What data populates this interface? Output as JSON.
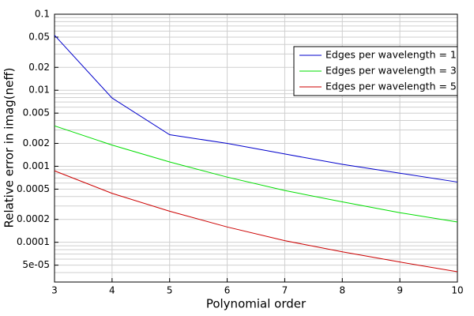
{
  "chart_data": {
    "type": "line",
    "xlabel": "Polynomial order",
    "ylabel": "Relative error in imag(neff)",
    "x": [
      3,
      4,
      5,
      6,
      7,
      8,
      9,
      10
    ],
    "series": [
      {
        "name": "Edges per wavelength = 1",
        "color": "#0000cc",
        "values": [
          0.053,
          0.0079,
          0.0026,
          0.002,
          0.00145,
          0.00106,
          0.00081,
          0.00062
        ]
      },
      {
        "name": "Edges per wavelength = 3",
        "color": "#00dd00",
        "values": [
          0.0034,
          0.0019,
          0.00114,
          0.00072,
          0.00048,
          0.00034,
          0.000245,
          0.000185
        ]
      },
      {
        "name": "Edges per wavelength = 5",
        "color": "#cc0000",
        "values": [
          0.00087,
          0.00044,
          0.000256,
          0.000159,
          0.000105,
          7.5e-05,
          5.5e-05,
          4.1e-05
        ]
      }
    ],
    "xlim": [
      3,
      10
    ],
    "xticks": [
      3,
      4,
      5,
      6,
      7,
      8,
      9,
      10
    ],
    "ylim": [
      3e-05,
      0.1
    ],
    "ylog": true,
    "yticks": [
      0.1,
      0.05,
      0.02,
      0.01,
      0.005,
      0.002,
      0.001,
      0.0005,
      0.0002,
      0.0001,
      {
        "value": 5e-05,
        "label": "5e-05"
      }
    ],
    "yminor_ticks": [
      4e-05,
      6e-05,
      7e-05,
      8e-05,
      9e-05,
      0.0003,
      0.0004,
      0.0006,
      0.0007,
      0.0008,
      0.0009,
      0.003,
      0.004,
      0.006,
      0.007,
      0.008,
      0.009,
      0.03,
      0.04,
      0.06,
      0.07,
      0.08,
      0.09
    ],
    "grid": true,
    "legend": "upper right"
  }
}
